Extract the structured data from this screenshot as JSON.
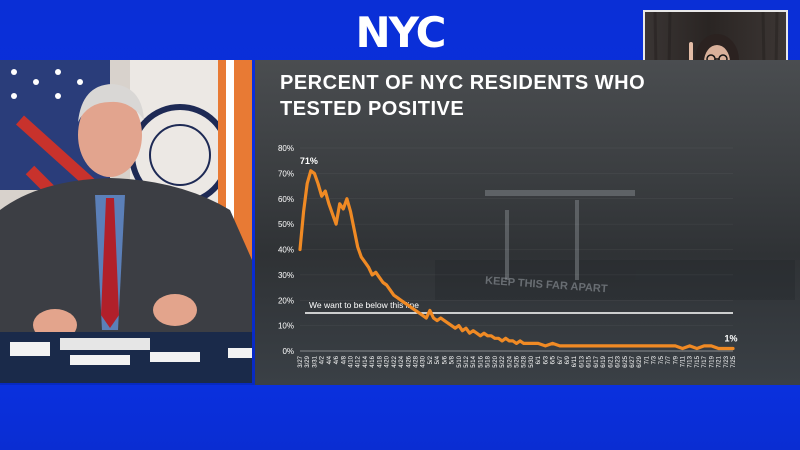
{
  "logo": {
    "text": "NYC"
  },
  "chart_data": {
    "type": "line",
    "title": "PERCENT OF NYC RESIDENTS WHO TESTED POSITIVE",
    "y_ticks": [
      "0%",
      "10%",
      "20%",
      "30%",
      "40%",
      "50%",
      "60%",
      "70%",
      "80%"
    ],
    "ylim": [
      0,
      80
    ],
    "x_ticks": [
      "3/27",
      "3/29",
      "3/31",
      "4/2",
      "4/4",
      "4/6",
      "4/8",
      "4/10",
      "4/12",
      "4/14",
      "4/16",
      "4/18",
      "4/20",
      "4/22",
      "4/24",
      "4/26",
      "4/28",
      "4/30",
      "5/2",
      "5/4",
      "5/6",
      "5/8",
      "5/10",
      "5/12",
      "5/14",
      "5/16",
      "5/18",
      "5/20",
      "5/22",
      "5/24",
      "5/26",
      "5/28",
      "5/30",
      "6/1",
      "6/3",
      "6/5",
      "6/7",
      "6/9",
      "6/11",
      "6/13",
      "6/15",
      "6/17",
      "6/19",
      "6/21",
      "6/23",
      "6/25",
      "6/27",
      "6/29",
      "7/1",
      "7/3",
      "7/5",
      "7/7",
      "7/9",
      "7/11",
      "7/13",
      "7/15",
      "7/17",
      "7/19",
      "7/21",
      "7/23",
      "7/25"
    ],
    "series": [
      {
        "color": "#f08a24",
        "x": [
          "3/27",
          "3/28",
          "3/29",
          "3/30",
          "3/31",
          "4/1",
          "4/2",
          "4/3",
          "4/4",
          "4/5",
          "4/6",
          "4/7",
          "4/8",
          "4/9",
          "4/10",
          "4/11",
          "4/12",
          "4/13",
          "4/14",
          "4/15",
          "4/16",
          "4/17",
          "4/18",
          "4/19",
          "4/20",
          "4/21",
          "4/22",
          "4/23",
          "4/24",
          "4/25",
          "4/26",
          "4/27",
          "4/28",
          "4/29",
          "4/30",
          "5/1",
          "5/2",
          "5/3",
          "5/4",
          "5/5",
          "5/6",
          "5/7",
          "5/8",
          "5/9",
          "5/10",
          "5/11",
          "5/12",
          "5/13",
          "5/14",
          "5/15",
          "5/16",
          "5/17",
          "5/18",
          "5/19",
          "5/20",
          "5/21",
          "5/22",
          "5/23",
          "5/24",
          "5/25",
          "5/26",
          "5/27",
          "5/28",
          "5/29",
          "5/30",
          "5/31",
          "6/1",
          "6/3",
          "6/5",
          "6/7",
          "6/9",
          "6/11",
          "6/13",
          "6/15",
          "6/17",
          "6/19",
          "6/21",
          "6/23",
          "6/25",
          "6/27",
          "6/29",
          "7/1",
          "7/3",
          "7/5",
          "7/7",
          "7/9",
          "7/11",
          "7/13",
          "7/15",
          "7/17",
          "7/19",
          "7/21",
          "7/23",
          "7/25"
        ],
        "values": [
          40,
          55,
          66,
          71,
          70,
          66,
          61,
          63,
          58,
          54,
          50,
          58,
          56,
          60,
          55,
          48,
          41,
          37,
          35,
          33,
          30,
          31,
          29,
          27,
          26,
          24,
          22,
          21,
          20,
          19,
          18,
          17,
          16,
          15,
          14,
          13,
          16,
          13,
          12,
          13,
          12,
          11,
          10,
          9,
          10,
          8,
          9,
          7,
          8,
          7,
          6,
          7,
          6,
          6,
          5,
          5,
          4,
          5,
          4,
          4,
          3,
          4,
          3,
          3,
          3,
          3,
          3,
          2,
          3,
          2,
          2,
          2,
          2,
          2,
          2,
          2,
          2,
          2,
          2,
          2,
          2,
          2,
          2,
          2,
          2,
          2,
          1,
          2,
          1,
          2,
          2,
          1,
          1,
          1
        ]
      }
    ],
    "annotations": [
      {
        "label": "71%",
        "x": "3/30",
        "y": 71
      },
      {
        "label": "1%",
        "x": "7/25",
        "y": 1
      }
    ],
    "reference_line": {
      "y": 15,
      "label": "We want to be below this line",
      "color": "#ffffff"
    },
    "background_text": "KEEP THIS FAR APART"
  }
}
